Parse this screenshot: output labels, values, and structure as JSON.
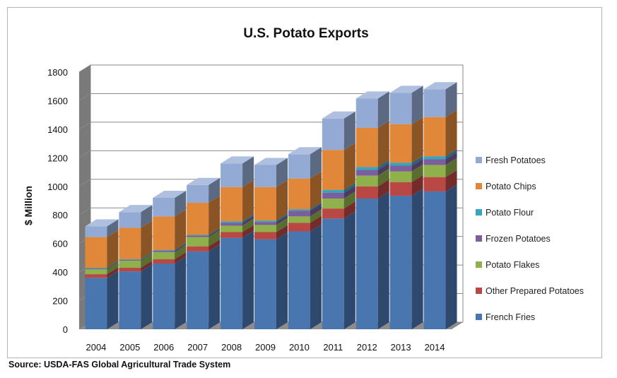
{
  "chart_data": {
    "type": "bar",
    "stacked": true,
    "style": "3d",
    "title": "U.S. Potato Exports",
    "xlabel": "",
    "ylabel": "$ Million",
    "ylim": [
      0,
      1800
    ],
    "yticks": [
      0,
      200,
      400,
      600,
      800,
      1000,
      1200,
      1400,
      1600,
      1800
    ],
    "grid": true,
    "legend_position": "right",
    "categories": [
      "2004",
      "2005",
      "2006",
      "2007",
      "2008",
      "2009",
      "2010",
      "2011",
      "2012",
      "2013",
      "2014"
    ],
    "series": [
      {
        "name": "French Fries",
        "color": "#4a76b0",
        "values": [
          360,
          405,
          460,
          545,
          640,
          630,
          685,
          775,
          915,
          935,
          965
        ]
      },
      {
        "name": "Other Prepared Potatoes",
        "color": "#b94743",
        "values": [
          25,
          25,
          30,
          35,
          40,
          50,
          60,
          70,
          85,
          95,
          100
        ]
      },
      {
        "name": "Potato Flakes",
        "color": "#8fb04a",
        "values": [
          35,
          50,
          50,
          65,
          45,
          50,
          45,
          70,
          75,
          75,
          85
        ]
      },
      {
        "name": "Frozen Potatoes",
        "color": "#7c5d9e",
        "values": [
          5,
          5,
          10,
          10,
          20,
          20,
          40,
          40,
          40,
          40,
          40
        ]
      },
      {
        "name": "Potato Flour",
        "color": "#36a6c0",
        "values": [
          5,
          5,
          5,
          5,
          10,
          10,
          10,
          20,
          20,
          20,
          20
        ]
      },
      {
        "name": "Potato Chips",
        "color": "#e0873a",
        "values": [
          215,
          220,
          235,
          225,
          240,
          235,
          215,
          280,
          275,
          270,
          275
        ]
      },
      {
        "name": "Fresh Potatoes",
        "color": "#93aad4",
        "values": [
          75,
          110,
          130,
          125,
          165,
          155,
          170,
          220,
          205,
          220,
          195
        ]
      }
    ]
  },
  "source_text": "Source: USDA-FAS Global Agricultural Trade System"
}
